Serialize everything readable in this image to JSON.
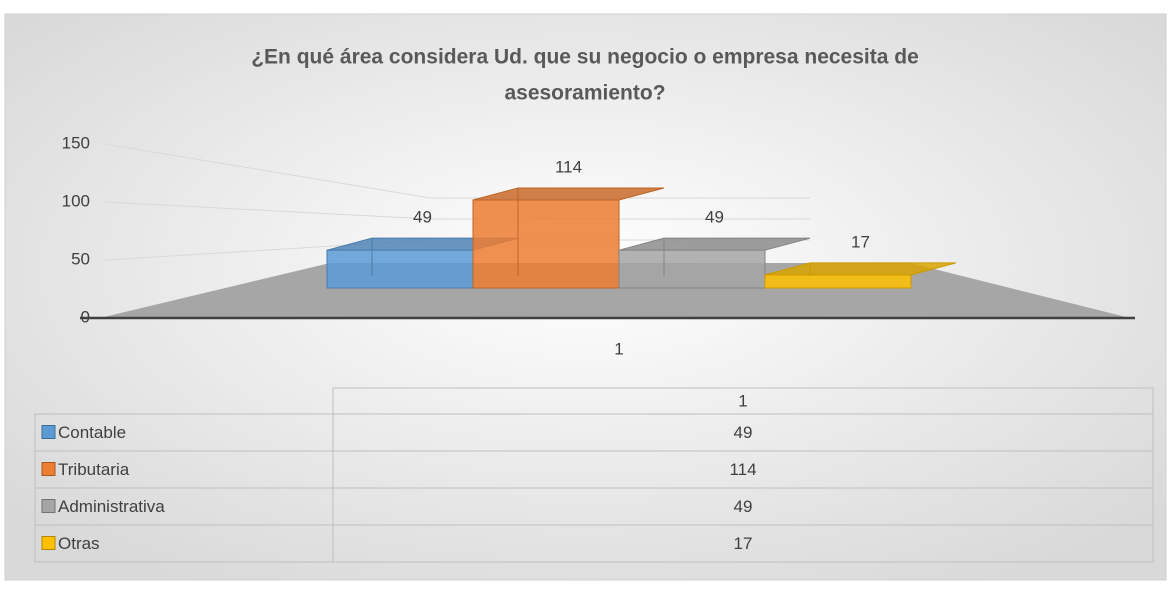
{
  "chart_data": {
    "type": "bar3d",
    "title": "¿En qué área considera Ud. que su negocio o empresa necesita de asesoramiento?",
    "categories": [
      "1"
    ],
    "series": [
      {
        "name": "Contable",
        "color": "#5b9bd5",
        "values": [
          49
        ]
      },
      {
        "name": "Tributaria",
        "color": "#ed7d31",
        "values": [
          114
        ]
      },
      {
        "name": "Administrativa",
        "color": "#a5a5a5",
        "values": [
          49
        ]
      },
      {
        "name": "Otras",
        "color": "#ffc000",
        "values": [
          17
        ]
      }
    ],
    "ylim": [
      0,
      150
    ],
    "yticks": [
      0,
      50,
      100,
      150
    ],
    "grid": true,
    "data_table": true
  }
}
